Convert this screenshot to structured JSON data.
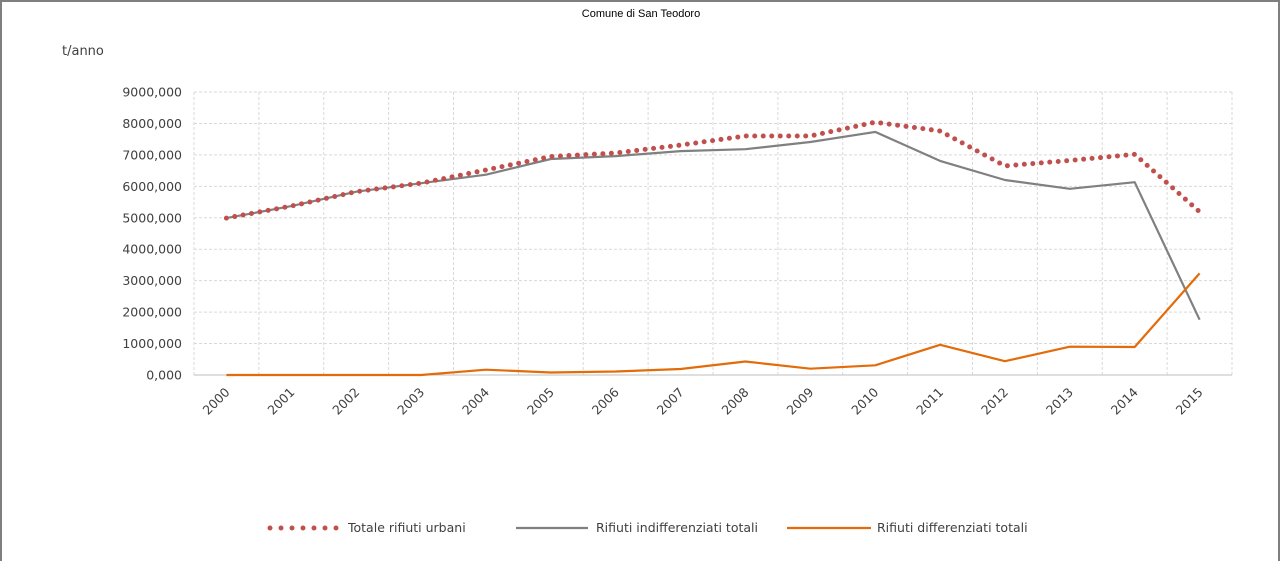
{
  "chart_data": {
    "type": "line",
    "title": "Comune di San Teodoro",
    "ylabel": "t/anno",
    "xlabel": "",
    "ylim": [
      0,
      9000
    ],
    "yticks": [
      0,
      1000,
      2000,
      3000,
      4000,
      5000,
      6000,
      7000,
      8000,
      9000
    ],
    "ytick_labels": [
      "0,000",
      "1000,000",
      "2000,000",
      "3000,000",
      "4000,000",
      "5000,000",
      "6000,000",
      "7000,000",
      "8000,000",
      "9000,000"
    ],
    "grid": true,
    "legend_position": "bottom",
    "categories": [
      "2000",
      "2001",
      "2002",
      "2003",
      "2004",
      "2005",
      "2006",
      "2007",
      "2008",
      "2009",
      "2010",
      "2011",
      "2012",
      "2013",
      "2014",
      "2015"
    ],
    "series": [
      {
        "name": "Totale rifiuti urbani",
        "color": "#c0504d",
        "style": "dotted",
        "values": [
          4990,
          5370,
          5830,
          6100,
          6520,
          6950,
          7060,
          7310,
          7600,
          7600,
          8040,
          7760,
          6650,
          6820,
          7020,
          5190
        ]
      },
      {
        "name": "Rifiuti indifferenziati totali",
        "color": "#808080",
        "style": "solid",
        "values": [
          4990,
          5370,
          5830,
          6100,
          6370,
          6870,
          6960,
          7120,
          7180,
          7410,
          7730,
          6810,
          6200,
          5920,
          6130,
          1760
        ]
      },
      {
        "name": "Rifiuti differenziati totali",
        "color": "#e36c0a",
        "style": "solid",
        "values": [
          0,
          0,
          0,
          0,
          170,
          80,
          110,
          190,
          430,
          200,
          310,
          960,
          440,
          900,
          890,
          3230
        ]
      }
    ]
  }
}
